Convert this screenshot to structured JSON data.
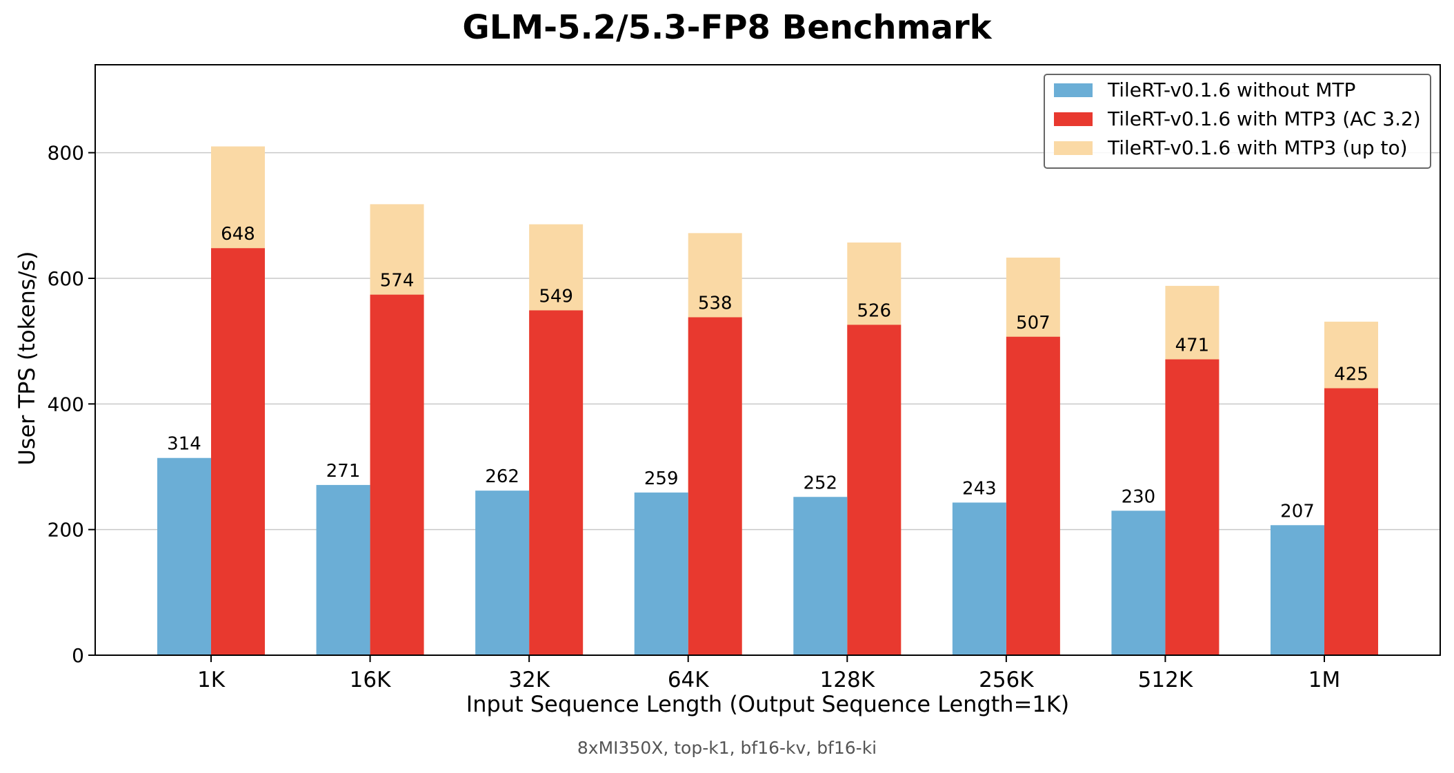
{
  "chart_data": {
    "type": "bar",
    "title": "GLM-5.2/5.3-FP8 Benchmark",
    "xlabel": "Input Sequence Length (Output Sequence Length=1K)",
    "ylabel": "User TPS (tokens/s)",
    "footnote": "8xMI350X, top-k1, bf16-kv, bf16-ki",
    "categories": [
      "1K",
      "16K",
      "32K",
      "64K",
      "128K",
      "256K",
      "512K",
      "1M"
    ],
    "ylim": [
      0,
      940
    ],
    "yticks": [
      0,
      200,
      400,
      600,
      800
    ],
    "grid": "horizontal",
    "legend_position": "top-right",
    "series": [
      {
        "name": "TileRT-v0.1.6 without MTP",
        "color": "#6baed6",
        "values": [
          314,
          271,
          262,
          259,
          252,
          243,
          230,
          207
        ],
        "labels": [
          "314",
          "271",
          "262",
          "259",
          "252",
          "243",
          "230",
          "207"
        ]
      },
      {
        "name": "TileRT-v0.1.6 with MTP3 (AC 3.2)",
        "color": "#e8392f",
        "values": [
          648,
          574,
          549,
          538,
          526,
          507,
          471,
          425
        ],
        "labels": [
          "648",
          "574",
          "549",
          "538",
          "526",
          "507",
          "471",
          "425"
        ]
      },
      {
        "name": "TileRT-v0.1.6 with MTP3 (up to)",
        "color": "#fad9a5",
        "values": [
          810,
          718,
          686,
          672,
          657,
          633,
          588,
          531
        ]
      }
    ]
  }
}
